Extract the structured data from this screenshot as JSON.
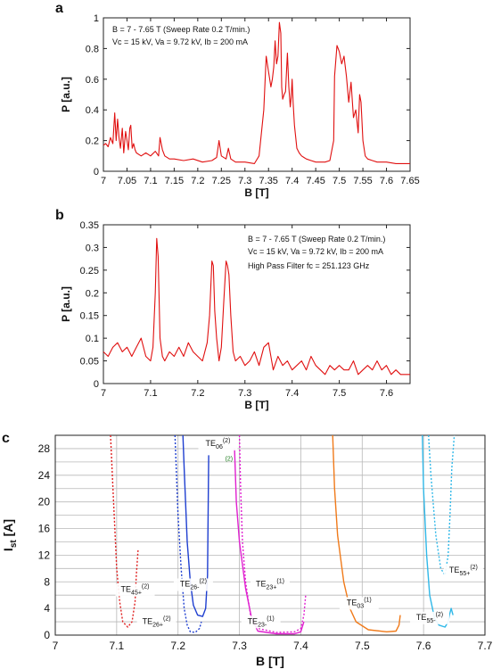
{
  "chart_data": [
    {
      "panel": "a",
      "type": "line",
      "xlabel": "B [T]",
      "ylabel": "P [a.u.]",
      "xlim": [
        7,
        7.65
      ],
      "ylim": [
        0,
        1
      ],
      "xticks": [
        "7",
        "7.05",
        "7.1",
        "7.15",
        "7.2",
        "7.25",
        "7.3",
        "7.35",
        "7.4",
        "7.45",
        "7.5",
        "7.55",
        "7.6",
        "7.65"
      ],
      "yticks": [
        "0",
        "0.2",
        "0.4",
        "0.6",
        "0.8",
        "1"
      ],
      "annotations": [
        "B = 7 - 7.65 T (Sweep Rate 0.2 T/min.)",
        "Vc = 15 kV, Va = 9.72 kV, Ib = 200 mA"
      ],
      "color": "#e01010",
      "series": [
        {
          "x": [
            7.0,
            7.005,
            7.01,
            7.015,
            7.02,
            7.024,
            7.027,
            7.03,
            7.033,
            7.036,
            7.04,
            7.043,
            7.047,
            7.05,
            7.053,
            7.056,
            7.058,
            7.061,
            7.064,
            7.067,
            7.07,
            7.08,
            7.09,
            7.1,
            7.11,
            7.117,
            7.12,
            7.125,
            7.13,
            7.14,
            7.15,
            7.17,
            7.19,
            7.21,
            7.23,
            7.24,
            7.245,
            7.25,
            7.26,
            7.265,
            7.27,
            7.28,
            7.3,
            7.32,
            7.33,
            7.34,
            7.345,
            7.35,
            7.355,
            7.358,
            7.361,
            7.364,
            7.367,
            7.37,
            7.373,
            7.376,
            7.378,
            7.38,
            7.383,
            7.386,
            7.39,
            7.393,
            7.396,
            7.398,
            7.4,
            7.402,
            7.405,
            7.41,
            7.415,
            7.42,
            7.425,
            7.43,
            7.44,
            7.45,
            7.47,
            7.48,
            7.488,
            7.49,
            7.495,
            7.5,
            7.505,
            7.51,
            7.515,
            7.52,
            7.525,
            7.53,
            7.535,
            7.54,
            7.543,
            7.546,
            7.55,
            7.555,
            7.56,
            7.57,
            7.58,
            7.6,
            7.62,
            7.64,
            7.65
          ],
          "y": [
            0.17,
            0.18,
            0.16,
            0.22,
            0.18,
            0.38,
            0.2,
            0.34,
            0.22,
            0.15,
            0.28,
            0.12,
            0.26,
            0.2,
            0.14,
            0.28,
            0.3,
            0.15,
            0.18,
            0.14,
            0.12,
            0.1,
            0.12,
            0.1,
            0.13,
            0.1,
            0.22,
            0.14,
            0.1,
            0.08,
            0.08,
            0.07,
            0.08,
            0.06,
            0.07,
            0.09,
            0.2,
            0.1,
            0.08,
            0.15,
            0.08,
            0.06,
            0.06,
            0.05,
            0.1,
            0.4,
            0.75,
            0.65,
            0.55,
            0.6,
            0.68,
            0.85,
            0.7,
            0.75,
            0.97,
            0.9,
            0.55,
            0.47,
            0.5,
            0.52,
            0.77,
            0.55,
            0.42,
            0.48,
            0.6,
            0.45,
            0.3,
            0.15,
            0.12,
            0.1,
            0.09,
            0.08,
            0.07,
            0.06,
            0.06,
            0.07,
            0.2,
            0.62,
            0.82,
            0.78,
            0.7,
            0.75,
            0.62,
            0.45,
            0.58,
            0.35,
            0.4,
            0.25,
            0.5,
            0.45,
            0.2,
            0.1,
            0.08,
            0.07,
            0.06,
            0.06,
            0.05,
            0.05,
            0.05
          ]
        }
      ]
    },
    {
      "panel": "b",
      "type": "line",
      "xlabel": "B [T]",
      "ylabel": "P [a.u.]",
      "xlim": [
        7,
        7.65
      ],
      "ylim": [
        0,
        0.35
      ],
      "xticks": [
        "7",
        "7.1",
        "7.2",
        "7.3",
        "7.4",
        "7.5",
        "7.6"
      ],
      "yticks": [
        "0",
        "0.05",
        "0.1",
        "0.15",
        "0.2",
        "0.25",
        "0.3",
        "0.35"
      ],
      "annotations": [
        "B = 7 - 7.65 T (Sweep Rate 0.2 T/min.)",
        "Vc = 15 kV, Va = 9.72 kV, Ib = 200 mA",
        "High Pass Filter fc = 251.123 GHz"
      ],
      "color": "#e01010",
      "series": [
        {
          "x": [
            7.0,
            7.01,
            7.02,
            7.03,
            7.04,
            7.05,
            7.06,
            7.07,
            7.08,
            7.09,
            7.1,
            7.105,
            7.11,
            7.113,
            7.116,
            7.12,
            7.125,
            7.13,
            7.14,
            7.15,
            7.16,
            7.17,
            7.18,
            7.19,
            7.2,
            7.21,
            7.22,
            7.225,
            7.23,
            7.233,
            7.236,
            7.24,
            7.245,
            7.25,
            7.255,
            7.26,
            7.263,
            7.266,
            7.27,
            7.275,
            7.28,
            7.29,
            7.3,
            7.31,
            7.32,
            7.33,
            7.34,
            7.35,
            7.36,
            7.37,
            7.38,
            7.39,
            7.4,
            7.41,
            7.42,
            7.43,
            7.44,
            7.45,
            7.46,
            7.47,
            7.48,
            7.49,
            7.5,
            7.51,
            7.52,
            7.53,
            7.54,
            7.55,
            7.56,
            7.57,
            7.58,
            7.59,
            7.6,
            7.61,
            7.62,
            7.63,
            7.64,
            7.65
          ],
          "y": [
            0.07,
            0.06,
            0.08,
            0.09,
            0.07,
            0.08,
            0.06,
            0.08,
            0.1,
            0.06,
            0.05,
            0.08,
            0.2,
            0.32,
            0.28,
            0.1,
            0.06,
            0.05,
            0.07,
            0.06,
            0.08,
            0.06,
            0.09,
            0.07,
            0.06,
            0.05,
            0.09,
            0.15,
            0.27,
            0.26,
            0.16,
            0.1,
            0.05,
            0.08,
            0.18,
            0.27,
            0.26,
            0.24,
            0.15,
            0.07,
            0.05,
            0.06,
            0.04,
            0.05,
            0.07,
            0.04,
            0.08,
            0.09,
            0.03,
            0.06,
            0.04,
            0.05,
            0.03,
            0.04,
            0.05,
            0.03,
            0.06,
            0.04,
            0.03,
            0.02,
            0.04,
            0.03,
            0.04,
            0.03,
            0.03,
            0.05,
            0.02,
            0.03,
            0.04,
            0.03,
            0.05,
            0.03,
            0.04,
            0.02,
            0.03,
            0.02,
            0.02,
            0.02
          ]
        }
      ]
    },
    {
      "panel": "c",
      "type": "line",
      "xlabel": "B [T]",
      "ylabel": "I",
      "ylabel_sub": "st",
      "ylabel_unit": " [A]",
      "xlim": [
        7,
        7.7
      ],
      "ylim": [
        0,
        30
      ],
      "xticks": [
        "7",
        "7.1",
        "7.2",
        "7.3",
        "7.4",
        "7.5",
        "7.6",
        "7.7"
      ],
      "yticks": [
        "0",
        "4",
        "8",
        "12",
        "16",
        "20",
        "24",
        "28"
      ],
      "series": [
        {
          "color": "#e02020",
          "dashed": true,
          "x": [
            7.09,
            7.095,
            7.1,
            7.105,
            7.11,
            7.118,
            7.125,
            7.13,
            7.132,
            7.135
          ],
          "y": [
            30,
            20,
            10,
            5,
            2,
            1.2,
            2,
            5,
            9,
            13
          ]
        },
        {
          "color": "#1f3fd0",
          "dashed": true,
          "x": [
            7.195,
            7.2,
            7.205,
            7.21,
            7.215,
            7.22,
            7.228,
            7.235,
            7.238
          ],
          "y": [
            30,
            18,
            10,
            4,
            1.5,
            0.5,
            0.4,
            1,
            2
          ]
        },
        {
          "color": "#1f3fd0",
          "dashed": false,
          "x": [
            7.208,
            7.21,
            7.215,
            7.22,
            7.225,
            7.232,
            7.24,
            7.245,
            7.248,
            7.25
          ],
          "y": [
            30,
            25,
            14,
            8,
            4.5,
            3,
            2.8,
            4,
            9,
            27
          ]
        },
        {
          "color": "#e020d0",
          "dashed": true,
          "x": [
            7.3,
            7.302,
            7.305,
            7.31,
            7.318,
            7.33,
            7.36,
            7.39,
            7.4,
            7.405,
            7.408
          ],
          "y": [
            30,
            22,
            14,
            8,
            3,
            1,
            0.4,
            0.5,
            1,
            3,
            6
          ]
        },
        {
          "color": "#e020d0",
          "dashed": false,
          "x": [
            7.292,
            7.295,
            7.3,
            7.31,
            7.32,
            7.33,
            7.36,
            7.39,
            7.4,
            7.405
          ],
          "y": [
            28,
            20,
            14,
            7,
            2.5,
            0.6,
            0.2,
            0.2,
            0.5,
            2
          ]
        },
        {
          "color": "#f07a1a",
          "dashed": false,
          "x": [
            7.452,
            7.455,
            7.46,
            7.47,
            7.48,
            7.49,
            7.51,
            7.54,
            7.555,
            7.56,
            7.562
          ],
          "y": [
            30,
            22,
            15,
            8,
            4,
            2,
            0.8,
            0.5,
            0.6,
            1.5,
            3
          ]
        },
        {
          "color": "#30b8e8",
          "dashed": false,
          "x": [
            7.598,
            7.6,
            7.605,
            7.61,
            7.618,
            7.625,
            7.635,
            7.64,
            7.642,
            7.645,
            7.648
          ],
          "y": [
            30,
            22,
            12,
            6,
            2.5,
            1.5,
            1.2,
            2,
            3,
            4,
            3
          ]
        },
        {
          "color": "#30b8e8",
          "dashed": true,
          "x": [
            7.608,
            7.612,
            7.62,
            7.628,
            7.635,
            7.64,
            7.643,
            7.646,
            7.65
          ],
          "y": [
            30,
            24,
            15,
            10,
            9,
            12,
            18,
            25,
            30
          ]
        }
      ],
      "mode_labels": [
        {
          "x": 7.13,
          "y": 6.5,
          "main": "TE",
          "sub": "45+",
          "sup": "(2)"
        },
        {
          "x": 7.225,
          "y": 7.3,
          "main": "TE",
          "sub": "26-",
          "sup": "(2)"
        },
        {
          "x": 7.265,
          "y": 28.4,
          "main": "TE",
          "sub": "06",
          "sup": "(2)"
        },
        {
          "x": 7.283,
          "y": 26.2,
          "main": "",
          "sub": "",
          "sup": "(2)"
        },
        {
          "x": 7.35,
          "y": 7.3,
          "main": "TE",
          "sub": "23+",
          "sup": "(1)"
        },
        {
          "x": 7.165,
          "y": 1.7,
          "main": "TE",
          "sub": "26+",
          "sup": "(2)"
        },
        {
          "x": 7.335,
          "y": 1.7,
          "main": "TE",
          "sub": "23-",
          "sup": "(1)"
        },
        {
          "x": 7.495,
          "y": 4.5,
          "main": "TE",
          "sub": "03",
          "sup": "(1)"
        },
        {
          "x": 7.61,
          "y": 2.3,
          "main": "TE",
          "sub": "55-",
          "sup": "(2)"
        },
        {
          "x": 7.665,
          "y": 9.4,
          "main": "TE",
          "sub": "55+",
          "sup": "(2)"
        }
      ]
    }
  ]
}
